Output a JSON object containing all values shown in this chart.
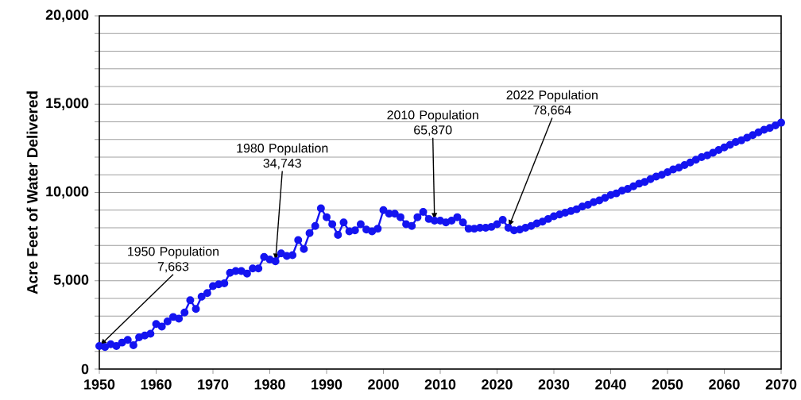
{
  "chart_data": {
    "type": "line",
    "ylabel": "Acre Feet of Water Delivered",
    "x": [
      1950,
      1951,
      1952,
      1953,
      1954,
      1955,
      1956,
      1957,
      1958,
      1959,
      1960,
      1961,
      1962,
      1963,
      1964,
      1965,
      1966,
      1967,
      1968,
      1969,
      1970,
      1971,
      1972,
      1973,
      1974,
      1975,
      1976,
      1977,
      1978,
      1979,
      1980,
      1981,
      1982,
      1983,
      1984,
      1985,
      1986,
      1987,
      1988,
      1989,
      1990,
      1991,
      1992,
      1993,
      1994,
      1995,
      1996,
      1997,
      1998,
      1999,
      2000,
      2001,
      2002,
      2003,
      2004,
      2005,
      2006,
      2007,
      2008,
      2009,
      2010,
      2011,
      2012,
      2013,
      2014,
      2015,
      2016,
      2017,
      2018,
      2019,
      2020,
      2021,
      2022,
      2023,
      2024,
      2025,
      2026,
      2027,
      2028,
      2029,
      2030,
      2031,
      2032,
      2033,
      2034,
      2035,
      2036,
      2037,
      2038,
      2039,
      2040,
      2041,
      2042,
      2043,
      2044,
      2045,
      2046,
      2047,
      2048,
      2049,
      2050,
      2051,
      2052,
      2053,
      2054,
      2055,
      2056,
      2057,
      2058,
      2059,
      2060,
      2061,
      2062,
      2063,
      2064,
      2065,
      2066,
      2067,
      2068,
      2069,
      2070
    ],
    "series": [
      {
        "color": "#1414f0",
        "values": [
          1300,
          1250,
          1400,
          1300,
          1500,
          1650,
          1350,
          1800,
          1900,
          2000,
          2550,
          2400,
          2700,
          2950,
          2850,
          3200,
          3900,
          3400,
          4100,
          4300,
          4700,
          4800,
          4850,
          5450,
          5550,
          5550,
          5400,
          5700,
          5700,
          6350,
          6200,
          6100,
          6550,
          6400,
          6450,
          7300,
          6800,
          7700,
          8100,
          9100,
          8600,
          8200,
          7600,
          8300,
          7800,
          7850,
          8200,
          7900,
          7800,
          7950,
          9000,
          8800,
          8800,
          8600,
          8200,
          8100,
          8600,
          8900,
          8500,
          8400,
          8400,
          8300,
          8400,
          8600,
          8300,
          7950,
          7950,
          8000,
          8000,
          8050,
          8200,
          8450,
          8000,
          7850,
          7900,
          8000,
          8100,
          8250,
          8350,
          8500,
          8650,
          8750,
          8850,
          8950,
          9050,
          9200,
          9300,
          9450,
          9550,
          9700,
          9850,
          9950,
          10100,
          10200,
          10350,
          10500,
          10600,
          10750,
          10900,
          11000,
          11150,
          11300,
          11400,
          11550,
          11700,
          11850,
          12000,
          12100,
          12250,
          12400,
          12550,
          12700,
          12850,
          12950,
          13100,
          13250,
          13400,
          13550,
          13650,
          13800,
          13950
        ]
      }
    ],
    "xlim": [
      1950,
      2070
    ],
    "ylim": [
      0,
      20000
    ],
    "xticks": [
      1950,
      1960,
      1970,
      1980,
      1990,
      2000,
      2010,
      2020,
      2030,
      2040,
      2050,
      2060,
      2070
    ],
    "yticks": [
      {
        "value": 0,
        "label": "0"
      },
      {
        "value": 1000,
        "label": null
      },
      {
        "value": 2000,
        "label": null
      },
      {
        "value": 3000,
        "label": null
      },
      {
        "value": 4000,
        "label": null
      },
      {
        "value": 5000,
        "label": "5,000"
      },
      {
        "value": 6000,
        "label": null
      },
      {
        "value": 7000,
        "label": null
      },
      {
        "value": 8000,
        "label": null
      },
      {
        "value": 9000,
        "label": null
      },
      {
        "value": 10000,
        "label": "10,000"
      },
      {
        "value": 11000,
        "label": null
      },
      {
        "value": 12000,
        "label": null
      },
      {
        "value": 13000,
        "label": null
      },
      {
        "value": 14000,
        "label": null
      },
      {
        "value": 15000,
        "label": "15,000"
      },
      {
        "value": 16000,
        "label": null
      },
      {
        "value": 17000,
        "label": null
      },
      {
        "value": 18000,
        "label": null
      },
      {
        "value": 19000,
        "label": null
      },
      {
        "value": 20000,
        "label": "20,000"
      }
    ],
    "grid": "y",
    "marker": "circle",
    "line_style": "solid",
    "annotations": [
      {
        "text": "1950 Population 7,663",
        "x": 1950,
        "y": 1300
      },
      {
        "text": "1980 Population 34,743",
        "x": 1981,
        "y": 6100
      },
      {
        "text": "2010  Population 65,870",
        "x": 2009,
        "y": 8400
      },
      {
        "text": "2022 Population 78,664",
        "x": 2022,
        "y": 8000
      }
    ]
  }
}
